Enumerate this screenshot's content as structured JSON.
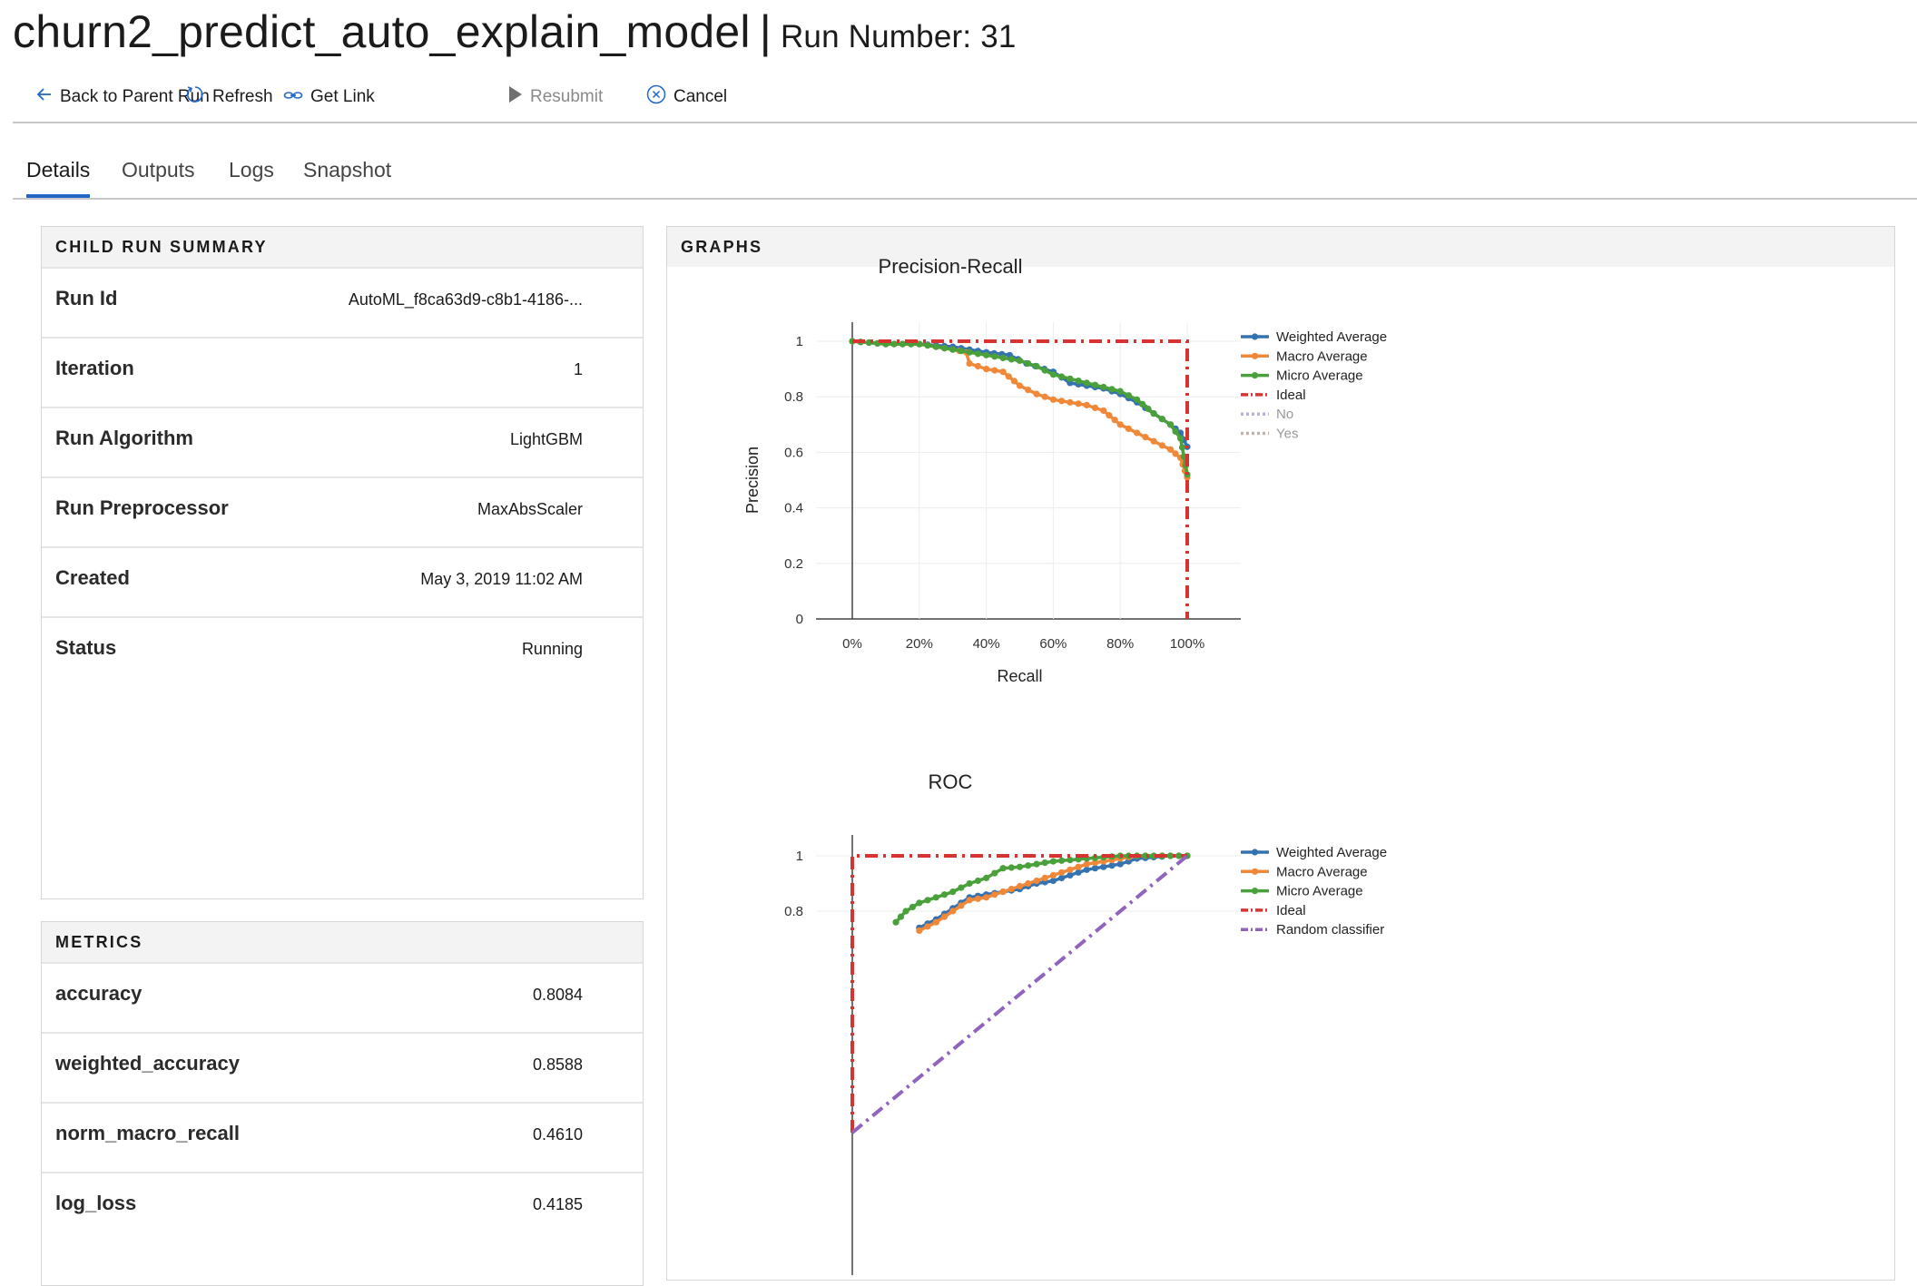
{
  "header": {
    "model_name": "churn2_predict_auto_explain_model",
    "separator": "|",
    "run_number_label": "Run Number: 31"
  },
  "toolbar": {
    "back_label": "Back to Parent Run",
    "refresh_label": "Refresh",
    "get_link_label": "Get Link",
    "resubmit_label": "Resubmit",
    "cancel_label": "Cancel"
  },
  "tabs": [
    {
      "label": "Details",
      "active": true
    },
    {
      "label": "Outputs",
      "active": false
    },
    {
      "label": "Logs",
      "active": false
    },
    {
      "label": "Snapshot",
      "active": false
    }
  ],
  "summary": {
    "title": "CHILD RUN SUMMARY",
    "rows": [
      {
        "key": "Run Id",
        "value": "AutoML_f8ca63d9-c8b1-4186-..."
      },
      {
        "key": "Iteration",
        "value": "1"
      },
      {
        "key": "Run Algorithm",
        "value": "LightGBM"
      },
      {
        "key": "Run Preprocessor",
        "value": "MaxAbsScaler"
      },
      {
        "key": "Created",
        "value": "May 3, 2019 11:02 AM"
      },
      {
        "key": "Status",
        "value": "Running"
      }
    ]
  },
  "metrics": {
    "title": "METRICS",
    "rows": [
      {
        "key": "accuracy",
        "value": "0.8084"
      },
      {
        "key": "weighted_accuracy",
        "value": "0.8588"
      },
      {
        "key": "norm_macro_recall",
        "value": "0.4610"
      },
      {
        "key": "log_loss",
        "value": "0.4185"
      }
    ]
  },
  "graphs": {
    "title": "GRAPHS"
  },
  "colors": {
    "accent": "#2266c6",
    "weighted": "#3572b0",
    "macro": "#f0883a",
    "micro": "#4aa03a",
    "ideal": "#d73330",
    "random": "#9063bd",
    "no": "#b5b1e0",
    "yes": "#c4b2a6"
  },
  "chart_data": [
    {
      "type": "line",
      "title": "Precision-Recall",
      "xlabel": "Recall",
      "ylabel": "Precision",
      "xlim": [
        0,
        1
      ],
      "ylim": [
        0,
        1
      ],
      "x_ticks": [
        "0%",
        "20%",
        "40%",
        "60%",
        "80%",
        "100%"
      ],
      "y_ticks": [
        "0",
        "0.2",
        "0.4",
        "0.6",
        "0.8",
        "1"
      ],
      "legend_position": "right",
      "legend": [
        "Weighted Average",
        "Macro Average",
        "Micro Average",
        "Ideal",
        "No",
        "Yes"
      ],
      "series": [
        {
          "name": "Weighted Average",
          "x": [
            0,
            0.1,
            0.2,
            0.3,
            0.35,
            0.4,
            0.47,
            0.52,
            0.6,
            0.65,
            0.7,
            0.75,
            0.8,
            0.85,
            0.9,
            0.95,
            0.98,
            1.0
          ],
          "y": [
            1.0,
            0.99,
            0.99,
            0.98,
            0.97,
            0.96,
            0.95,
            0.92,
            0.89,
            0.85,
            0.84,
            0.83,
            0.81,
            0.78,
            0.74,
            0.7,
            0.67,
            0.62
          ]
        },
        {
          "name": "Macro Average",
          "x": [
            0,
            0.1,
            0.2,
            0.3,
            0.34,
            0.35,
            0.4,
            0.45,
            0.5,
            0.55,
            0.6,
            0.7,
            0.75,
            0.8,
            0.85,
            0.9,
            0.95,
            0.98,
            1.0
          ],
          "y": [
            1.0,
            0.99,
            0.99,
            0.97,
            0.96,
            0.92,
            0.9,
            0.89,
            0.84,
            0.81,
            0.79,
            0.77,
            0.75,
            0.7,
            0.67,
            0.64,
            0.61,
            0.58,
            0.51
          ]
        },
        {
          "name": "Micro Average",
          "x": [
            0,
            0.1,
            0.2,
            0.3,
            0.4,
            0.5,
            0.55,
            0.6,
            0.7,
            0.8,
            0.85,
            0.9,
            0.95,
            0.98,
            1.0
          ],
          "y": [
            1.0,
            0.99,
            0.99,
            0.97,
            0.95,
            0.93,
            0.91,
            0.88,
            0.85,
            0.82,
            0.79,
            0.74,
            0.7,
            0.65,
            0.52
          ]
        },
        {
          "name": "Ideal",
          "x": [
            0,
            1,
            1
          ],
          "y": [
            1,
            1,
            0
          ]
        }
      ]
    },
    {
      "type": "line",
      "title": "ROC",
      "ylim": [
        0,
        1
      ],
      "x_ticks": [],
      "y_ticks": [
        "0.8",
        "1"
      ],
      "legend_position": "right",
      "legend": [
        "Weighted Average",
        "Macro Average",
        "Micro Average",
        "Ideal",
        "Random classifier"
      ],
      "series": [
        {
          "name": "Weighted Average",
          "x": [
            0.2,
            0.25,
            0.3,
            0.35,
            0.4,
            0.45,
            0.5,
            0.55,
            0.6,
            0.65,
            0.7,
            0.75,
            0.8,
            0.85,
            0.9,
            0.95,
            1.0
          ],
          "y": [
            0.74,
            0.77,
            0.81,
            0.85,
            0.86,
            0.87,
            0.88,
            0.9,
            0.91,
            0.93,
            0.95,
            0.96,
            0.97,
            0.99,
            0.995,
            1.0,
            1.0
          ]
        },
        {
          "name": "Macro Average",
          "x": [
            0.2,
            0.25,
            0.3,
            0.35,
            0.4,
            0.45,
            0.5,
            0.55,
            0.6,
            0.65,
            0.7,
            0.75,
            0.8,
            0.85,
            0.9,
            0.95,
            1.0
          ],
          "y": [
            0.73,
            0.76,
            0.8,
            0.84,
            0.85,
            0.87,
            0.89,
            0.91,
            0.93,
            0.95,
            0.97,
            0.98,
            0.99,
            1.0,
            1.0,
            1.0,
            1.0
          ]
        },
        {
          "name": "Micro Average",
          "x": [
            0.13,
            0.16,
            0.2,
            0.25,
            0.3,
            0.35,
            0.4,
            0.45,
            0.5,
            0.55,
            0.6,
            0.7,
            0.8,
            0.9,
            1.0
          ],
          "y": [
            0.76,
            0.8,
            0.83,
            0.85,
            0.87,
            0.9,
            0.92,
            0.955,
            0.96,
            0.97,
            0.98,
            0.99,
            1.0,
            1.0,
            1.0
          ]
        },
        {
          "name": "Ideal",
          "x": [
            0,
            0,
            1
          ],
          "y": [
            0,
            1,
            1
          ]
        },
        {
          "name": "Random classifier",
          "x": [
            0,
            1
          ],
          "y": [
            0,
            1
          ]
        }
      ]
    }
  ]
}
